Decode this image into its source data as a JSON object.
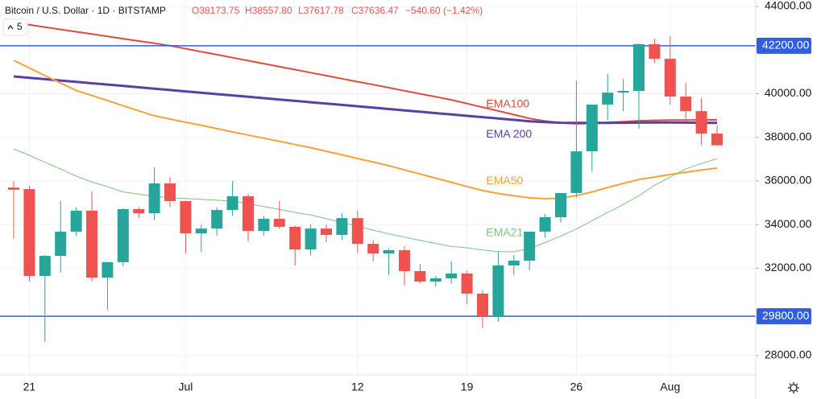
{
  "header": {
    "title": "Bitcoin / U.S. Dollar · 1D · BITSTAMP",
    "open": "O38173.75",
    "high": "H38557.80",
    "low": "L37617.78",
    "close": "C37636.47",
    "change": "−540.60 (−1.42%)",
    "indicators": "5"
  },
  "chart_data": {
    "type": "candlestick",
    "categories": [
      null,
      "21",
      null,
      null,
      null,
      null,
      null,
      null,
      null,
      null,
      null,
      "Jul",
      null,
      null,
      null,
      null,
      null,
      null,
      null,
      null,
      null,
      null,
      "12",
      null,
      null,
      null,
      null,
      null,
      null,
      "19",
      null,
      null,
      null,
      null,
      null,
      null,
      "26",
      null,
      null,
      null,
      null,
      null,
      "Aug",
      null,
      null,
      null
    ],
    "open": [
      35700,
      35630,
      31650,
      32570,
      33680,
      34640,
      31570,
      32280,
      34710,
      34520,
      35890,
      35080,
      33600,
      33820,
      34670,
      35300,
      33710,
      34270,
      33900,
      32860,
      33820,
      33530,
      34300,
      33120,
      32680,
      32830,
      31870,
      31390,
      31540,
      31760,
      30840,
      29800,
      32130,
      32350,
      33680,
      34340,
      35450,
      37360,
      39500,
      40050,
      40130,
      42270,
      41600,
      39870,
      39200,
      38173.75
    ],
    "high": [
      36000,
      35780,
      32600,
      35080,
      34800,
      35520,
      32300,
      34750,
      34800,
      36630,
      36180,
      35100,
      34000,
      34800,
      36000,
      35400,
      34400,
      35080,
      33950,
      34000,
      34000,
      34520,
      34640,
      33300,
      32900,
      33000,
      32200,
      31650,
      32310,
      31900,
      31000,
      32790,
      32600,
      33600,
      34500,
      35400,
      40600,
      39500,
      40900,
      40680,
      42300,
      42520,
      42640,
      40500,
      39800,
      38557.8
    ],
    "low": [
      33350,
      31400,
      28630,
      31800,
      33500,
      31400,
      30100,
      32100,
      34300,
      34200,
      34800,
      32680,
      32750,
      33500,
      34400,
      33230,
      33500,
      33800,
      32130,
      32600,
      33200,
      33300,
      32700,
      32310,
      31700,
      31200,
      31300,
      31150,
      31300,
      30360,
      29250,
      29550,
      31700,
      31900,
      33400,
      34100,
      35250,
      36440,
      38800,
      39200,
      38400,
      41400,
      39500,
      38700,
      37650,
      37617.78
    ],
    "close": [
      35600,
      31650,
      32570,
      33680,
      34640,
      31570,
      32280,
      34710,
      34520,
      35890,
      35080,
      33600,
      33820,
      34670,
      35300,
      33710,
      34270,
      33900,
      32860,
      33820,
      33530,
      34300,
      33120,
      32680,
      32830,
      31870,
      31390,
      31540,
      31760,
      30840,
      29800,
      32130,
      32350,
      33680,
      34340,
      35450,
      37360,
      39500,
      40050,
      40130,
      42270,
      41600,
      39870,
      39200,
      38170,
      37636.47
    ],
    "up_color": "#26a69a",
    "down_color": "#ef5350",
    "series": [
      {
        "name": "EMA100",
        "color": "#e04b3d",
        "values": [
          43263,
          43160,
          43050,
          42945,
          42840,
          42735,
          42630,
          42520,
          42415,
          42310,
          42200,
          42065,
          41925,
          41790,
          41650,
          41515,
          41380,
          41240,
          41105,
          40965,
          40830,
          40690,
          40550,
          40415,
          40275,
          40135,
          39995,
          39860,
          39720,
          39550,
          39380,
          39210,
          39040,
          38870,
          38750,
          38660,
          38620,
          38640,
          38680,
          38720,
          38760,
          38780,
          38790,
          38795,
          38800,
          38800
        ]
      },
      {
        "name": "EMA 200",
        "color": "#5c3ea8",
        "values": [
          40792,
          40730,
          40668,
          40605,
          40543,
          40481,
          40419,
          40357,
          40294,
          40232,
          40170,
          40108,
          40046,
          39983,
          39921,
          39859,
          39797,
          39735,
          39672,
          39610,
          39548,
          39486,
          39424,
          39361,
          39299,
          39237,
          39175,
          39113,
          39050,
          38988,
          38926,
          38864,
          38802,
          38740,
          38700,
          38670,
          38660,
          38660,
          38665,
          38670,
          38675,
          38680,
          38680,
          38675,
          38670,
          38660
        ]
      },
      {
        "name": "EMA50",
        "color": "#f5a23a",
        "values": [
          41530,
          41180,
          40830,
          40490,
          40150,
          39920,
          39690,
          39450,
          39220,
          38990,
          38840,
          38690,
          38550,
          38400,
          38250,
          38110,
          37960,
          37820,
          37670,
          37530,
          37360,
          37200,
          37030,
          36870,
          36700,
          36510,
          36320,
          36130,
          35940,
          35750,
          35560,
          35430,
          35320,
          35230,
          35190,
          35220,
          35330,
          35500,
          35700,
          35890,
          36070,
          36180,
          36300,
          36400,
          36500,
          36590
        ]
      },
      {
        "name": "EMA21",
        "color": "#7cc47f",
        "values": [
          37470,
          37180,
          36860,
          36550,
          36220,
          35960,
          35740,
          35500,
          35400,
          35290,
          35240,
          35200,
          35160,
          35120,
          35080,
          34960,
          34830,
          34700,
          34560,
          34440,
          34270,
          34100,
          33920,
          33750,
          33580,
          33430,
          33280,
          33140,
          33000,
          32940,
          32840,
          32760,
          32760,
          32900,
          33180,
          33480,
          33800,
          34180,
          34560,
          34920,
          35330,
          35800,
          36180,
          36560,
          36800,
          37030
        ]
      }
    ],
    "hlines": [
      {
        "value": 42200,
        "label": "42200.00",
        "color": "#2f5fe0"
      },
      {
        "value": 29800,
        "label": "29800.00",
        "color": "#2f5fe0"
      }
    ],
    "ylim": [
      27115,
      44295
    ],
    "yticks": [
      {
        "value": 28000,
        "label": "28000.00"
      },
      {
        "value": 32000,
        "label": "32000.00"
      },
      {
        "value": 34000,
        "label": "34000.00"
      },
      {
        "value": 36000,
        "label": "36000.00"
      },
      {
        "value": 38000,
        "label": "38000.00"
      },
      {
        "value": 40000,
        "label": "40000.00"
      },
      {
        "value": 44000,
        "label": "44000.00"
      }
    ],
    "grid": true
  }
}
